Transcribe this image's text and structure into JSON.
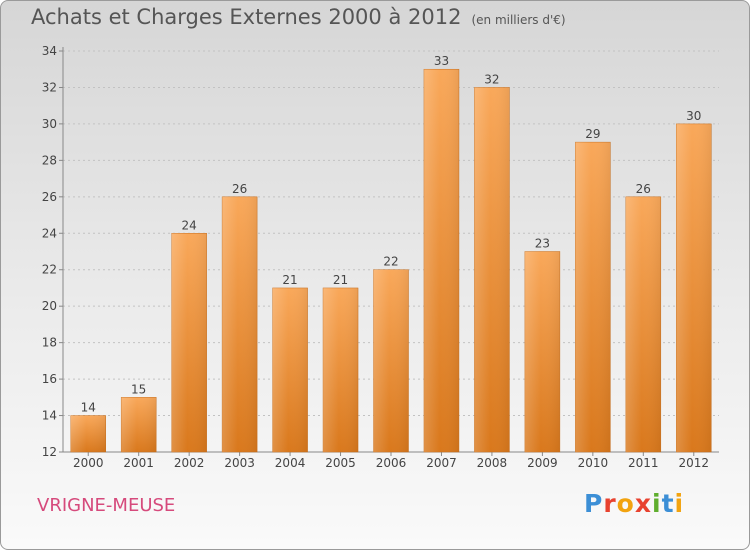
{
  "title": "Achats et Charges Externes 2000 à 2012",
  "unit": "(en milliers d'€)",
  "commune": "VRIGNE-MEUSE",
  "logo": "Proxiti",
  "colors": {
    "bar_top": "#f9a85a",
    "bar_bottom": "#d9781c",
    "commune": "#d64a7c"
  },
  "chart_data": {
    "type": "bar",
    "categories": [
      "2000",
      "2001",
      "2002",
      "2003",
      "2004",
      "2005",
      "2006",
      "2007",
      "2008",
      "2009",
      "2010",
      "2011",
      "2012"
    ],
    "values": [
      14,
      15,
      24,
      26,
      21,
      21,
      22,
      33,
      32,
      23,
      29,
      26,
      30
    ],
    "data_labels": [
      "14",
      "15",
      "24",
      "26",
      "21",
      "21",
      "22",
      "33",
      "32",
      "23",
      "29",
      "26",
      "30"
    ],
    "ylim": [
      12,
      34
    ],
    "yticks": [
      "12",
      "14",
      "16",
      "18",
      "20",
      "22",
      "24",
      "26",
      "28",
      "30",
      "32",
      "34"
    ],
    "grid": true,
    "title": "Achats et Charges Externes 2000 à 2012",
    "xlabel": "",
    "ylabel": ""
  }
}
